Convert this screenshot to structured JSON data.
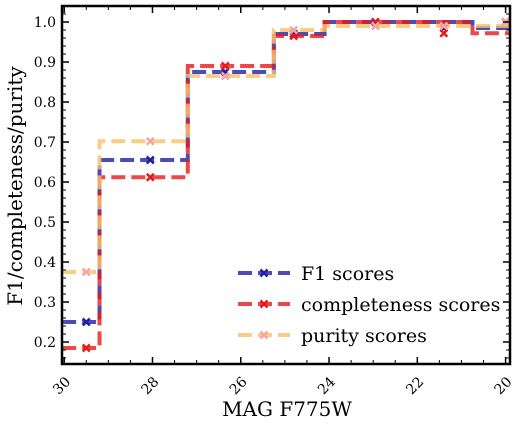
{
  "chart_data": {
    "type": "line",
    "step": "post",
    "xlabel": "MAG F775W",
    "ylabel": "F1/completeness/purity",
    "xlim": [
      30.05,
      19.9
    ],
    "ylim": [
      0.145,
      1.04
    ],
    "x_inverted": true,
    "x_ticks": [
      30,
      28,
      26,
      24,
      22,
      20
    ],
    "y_ticks": [
      0.2,
      0.3,
      0.4,
      0.5,
      0.6,
      0.7,
      0.8,
      0.9,
      1.0
    ],
    "x_tick_labels": [
      "30",
      "28",
      "26",
      "24",
      "22",
      "20"
    ],
    "y_tick_labels": [
      "0.2",
      "0.3",
      "0.4",
      "0.5",
      "0.6",
      "0.7",
      "0.8",
      "0.9",
      "1.0"
    ],
    "legend_position": "lower-right",
    "x": [
      29.5,
      27.2,
      25.5,
      23.55,
      21.8,
      20.0
    ],
    "bin_edges": [
      30.5,
      29.2,
      27.2,
      25.25,
      24.1,
      20.75,
      19.6
    ],
    "series": [
      {
        "name": "F1 scores",
        "color": "#1f1fa8",
        "marker": "x",
        "x": [
          29.5,
          28.05,
          26.35,
          24.8,
          22.95,
          21.4,
          20.0
        ],
        "values": [
          0.25,
          0.655,
          0.875,
          0.97,
          1.0,
          0.985,
          1.0
        ]
      },
      {
        "name": "completeness scores",
        "color": "#e8191a",
        "marker": "x",
        "x": [
          29.5,
          28.05,
          26.35,
          24.8,
          22.95,
          21.4,
          20.0
        ],
        "values": [
          0.185,
          0.612,
          0.89,
          0.965,
          1.0,
          0.972,
          1.0
        ]
      },
      {
        "name": "purity scores",
        "color": "#f8c16a",
        "marker": "x",
        "marker_color": "#f4a6a6",
        "x": [
          29.5,
          28.05,
          26.35,
          24.8,
          22.95,
          21.4,
          20.0
        ],
        "values": [
          0.375,
          0.702,
          0.865,
          0.98,
          0.99,
          0.99,
          1.0
        ]
      }
    ]
  }
}
